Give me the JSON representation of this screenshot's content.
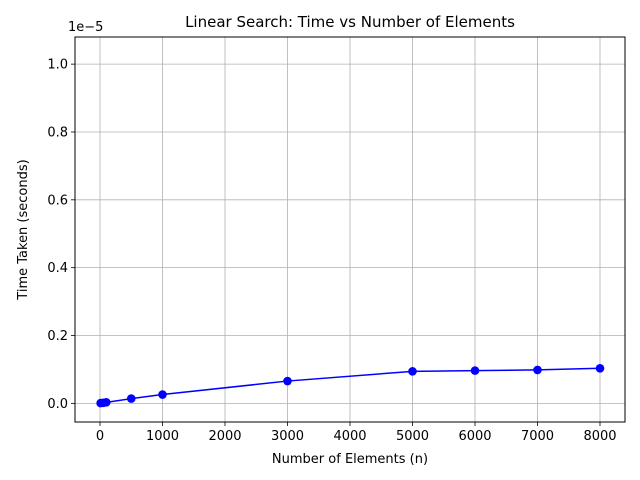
{
  "chart_data": {
    "type": "line",
    "title": "Linear Search: Time vs Number of Elements",
    "xlabel": "Number of Elements (n)",
    "ylabel": "Time Taken (seconds)",
    "y_offset_label": "1e−5",
    "xlim": [
      -400,
      8400
    ],
    "ylim": [
      -5.5e-07,
      1.08e-05
    ],
    "xticks": [
      0,
      1000,
      2000,
      3000,
      4000,
      5000,
      6000,
      7000,
      8000
    ],
    "xtick_labels": [
      "0",
      "1000",
      "2000",
      "3000",
      "4000",
      "5000",
      "6000",
      "7000",
      "8000"
    ],
    "yticks": [
      0,
      2e-06,
      4e-06,
      6e-06,
      8e-06,
      1e-05
    ],
    "ytick_labels": [
      "0.0",
      "0.2",
      "0.4",
      "0.6",
      "0.8",
      "1.0"
    ],
    "grid": true,
    "marker": "circle",
    "color": "#0000ff",
    "series": [
      {
        "x": [
          10,
          50,
          100,
          500,
          1000,
          3000,
          5000,
          6000,
          7000,
          8000
        ],
        "y": [
          7e-09,
          1.6e-08,
          3e-08,
          1.4e-07,
          2.6e-07,
          6.57e-07,
          9.43e-07,
          9.65e-07,
          9.86e-07,
          1.033e-06
        ]
      }
    ]
  }
}
